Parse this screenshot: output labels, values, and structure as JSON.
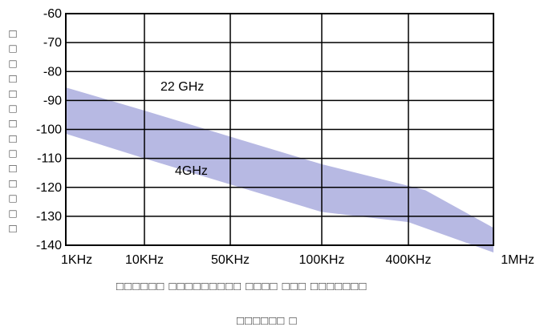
{
  "chart_data": {
    "type": "area",
    "ylabel": "□□□□□□□□□□□□□□",
    "xlabel": "□□□□□□ □□□□□□□□□ □□□□ □□□ □□□□□□□",
    "caption": "□□□□□□ □",
    "x_ticks": [
      "1KHz",
      "10KHz",
      "50KHz",
      "100KHz",
      "400KHz",
      "1MHz"
    ],
    "y_ticks": [
      -60,
      -70,
      -80,
      -90,
      -100,
      -110,
      -120,
      -130,
      -140
    ],
    "ylim": [
      -140,
      -60
    ],
    "grid": true,
    "series": [
      {
        "name": "22 GHz",
        "x_index": [
          0,
          1,
          2,
          3,
          4,
          4.2,
          5
        ],
        "values": [
          -85.5,
          -93.5,
          -102.5,
          -112,
          -119.5,
          -121,
          -134
        ]
      },
      {
        "name": "4GHz",
        "x_index": [
          0,
          1,
          2,
          3,
          4,
          5
        ],
        "values": [
          -101.5,
          -110,
          -119,
          -128.5,
          -132,
          -142.5
        ]
      }
    ],
    "annotations": [
      "22 GHz",
      "4GHz"
    ],
    "colors": {
      "band": "#b7b9e3",
      "grid": "#000000"
    }
  }
}
